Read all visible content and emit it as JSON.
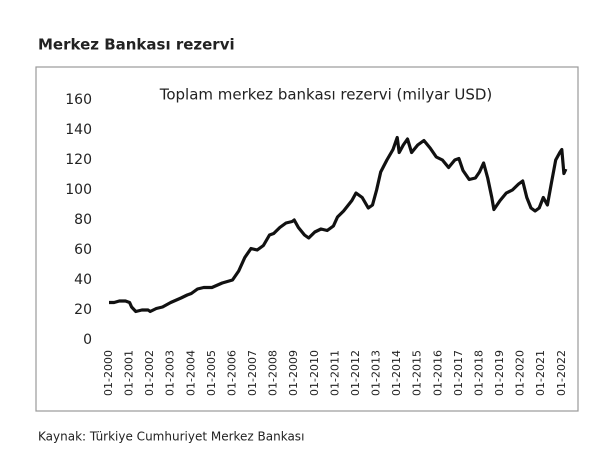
{
  "header": {
    "title": "Merkez Bankası rezervi"
  },
  "chart_data": {
    "type": "line",
    "title": "Toplam merkez bankası rezervi (milyar USD)",
    "x": [
      2000.0,
      2000.25,
      2000.5,
      2000.8,
      2001.0,
      2001.1,
      2001.3,
      2001.6,
      2001.9,
      2002.0,
      2002.3,
      2002.6,
      2003.0,
      2003.5,
      2003.8,
      2004.0,
      2004.3,
      2004.6,
      2005.0,
      2005.5,
      2006.0,
      2006.3,
      2006.6,
      2006.9,
      2007.2,
      2007.5,
      2007.8,
      2008.0,
      2008.3,
      2008.6,
      2008.9,
      2009.0,
      2009.2,
      2009.5,
      2009.7,
      2010.0,
      2010.3,
      2010.6,
      2010.9,
      2011.1,
      2011.4,
      2011.8,
      2012.0,
      2012.3,
      2012.6,
      2012.8,
      2013.0,
      2013.2,
      2013.5,
      2013.8,
      2014.0,
      2014.1,
      2014.3,
      2014.5,
      2014.7,
      2015.0,
      2015.3,
      2015.6,
      2015.9,
      2016.2,
      2016.5,
      2016.8,
      2017.0,
      2017.2,
      2017.5,
      2017.8,
      2018.0,
      2018.2,
      2018.4,
      2018.6,
      2018.7,
      2019.0,
      2019.3,
      2019.6,
      2019.9,
      2020.1,
      2020.3,
      2020.5,
      2020.7,
      2020.9,
      2021.1,
      2021.3,
      2021.5,
      2021.7,
      2021.9,
      2022.0,
      2022.1,
      2022.2
    ],
    "series": [
      {
        "color": "#111111",
        "values": [
          25,
          25,
          26,
          26,
          25,
          22,
          19,
          20,
          20,
          19,
          21,
          22,
          25,
          28,
          30,
          31,
          34,
          35,
          35,
          38,
          40,
          46,
          55,
          61,
          60,
          63,
          70,
          71,
          75,
          78,
          79,
          80,
          75,
          70,
          68,
          72,
          74,
          73,
          76,
          82,
          86,
          93,
          98,
          95,
          88,
          90,
          100,
          112,
          120,
          127,
          135,
          125,
          130,
          134,
          125,
          130,
          133,
          128,
          122,
          120,
          115,
          120,
          121,
          113,
          107,
          108,
          112,
          118,
          108,
          95,
          87,
          93,
          98,
          100,
          104,
          106,
          95,
          88,
          86,
          88,
          95,
          90,
          105,
          120,
          125,
          127,
          111,
          114
        ]
      }
    ],
    "xlim": [
      2000,
      2022.3
    ],
    "xticks": [
      {
        "value": 2000,
        "label": "01-2000"
      },
      {
        "value": 2001,
        "label": "01-2001"
      },
      {
        "value": 2002,
        "label": "01-2002"
      },
      {
        "value": 2003,
        "label": "01-2003"
      },
      {
        "value": 2004,
        "label": "01-2004"
      },
      {
        "value": 2005,
        "label": "01-2005"
      },
      {
        "value": 2006,
        "label": "01-2006"
      },
      {
        "value": 2007,
        "label": "01-2007"
      },
      {
        "value": 2008,
        "label": "01-2008"
      },
      {
        "value": 2009,
        "label": "01-2009"
      },
      {
        "value": 2010,
        "label": "01-2010"
      },
      {
        "value": 2011,
        "label": "01-2011"
      },
      {
        "value": 2012,
        "label": "01-2012"
      },
      {
        "value": 2013,
        "label": "01-2013"
      },
      {
        "value": 2014,
        "label": "01-2014"
      },
      {
        "value": 2015,
        "label": "01-2015"
      },
      {
        "value": 2016,
        "label": "01-2016"
      },
      {
        "value": 2017,
        "label": "01-2017"
      },
      {
        "value": 2018,
        "label": "01-2018"
      },
      {
        "value": 2019,
        "label": "01-2019"
      },
      {
        "value": 2020,
        "label": "01-2020"
      },
      {
        "value": 2021,
        "label": "01-2021"
      },
      {
        "value": 2022,
        "label": "01-2022"
      }
    ],
    "ylim": [
      0,
      160
    ],
    "yticks": [
      0,
      20,
      40,
      60,
      80,
      100,
      120,
      140,
      160
    ]
  },
  "footer": {
    "source": "Kaynak: Türkiye Cumhuriyet Merkez Bankası"
  }
}
